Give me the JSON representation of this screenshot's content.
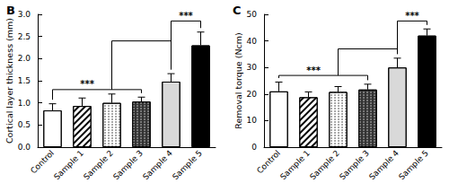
{
  "chart_data": [
    {
      "type": "bar",
      "title": "B",
      "y_label": "Cortical layer thickness (mm)",
      "categories": [
        "Control",
        "Sample 1",
        "Sample 2",
        "Sample 3",
        "Sample 4",
        "Sample 5"
      ],
      "values": [
        0.83,
        0.93,
        1.0,
        1.03,
        1.48,
        2.3
      ],
      "errors": [
        0.15,
        0.18,
        0.2,
        0.1,
        0.18,
        0.3
      ],
      "colors": [
        "#ffffff",
        "#ffffff",
        "#ffffff",
        "#333333",
        "#d9d9d9",
        "#000000"
      ],
      "ylim": [
        0,
        3
      ],
      "yticks": [
        {
          "value": 0,
          "label": "0.0"
        },
        0.5,
        {
          "value": 1,
          "label": "1.0"
        },
        1.5,
        {
          "value": 2,
          "label": "2.0"
        },
        2.5,
        {
          "value": 3,
          "label": "3.0"
        }
      ],
      "grid": false,
      "brackets": [
        {
          "from": "Control",
          "to": "Sample 3",
          "y": 1.3,
          "text": "***"
        },
        {
          "from": "Sample 4",
          "to": "Sample 5",
          "y": 2.85,
          "link_y": 2.4,
          "text": "***"
        }
      ]
    },
    {
      "type": "bar",
      "title": "C",
      "y_label": "Removal torque (Ncm)",
      "categories": [
        "Control",
        "Sample 1",
        "Sample 2",
        "Sample 3",
        "Sample 4",
        "Sample 5"
      ],
      "values": [
        21,
        18.8,
        20.8,
        21.7,
        30,
        42
      ],
      "errors": [
        3.5,
        2,
        2,
        2,
        3.5,
        2.5
      ],
      "colors": [
        "#ffffff",
        "#ffffff",
        "#ffffff",
        "#333333",
        "#d9d9d9",
        "#000000"
      ],
      "ylim": [
        0,
        50
      ],
      "yticks": [
        0,
        10,
        20,
        30,
        40,
        50
      ],
      "grid": false,
      "brackets": [
        {
          "from": "Control",
          "to": "Sample 3",
          "y": 27,
          "text": "***"
        },
        {
          "from": "Sample 4",
          "to": "Sample 5",
          "y": 47.5,
          "link_y": 37,
          "text": "***"
        }
      ]
    }
  ]
}
